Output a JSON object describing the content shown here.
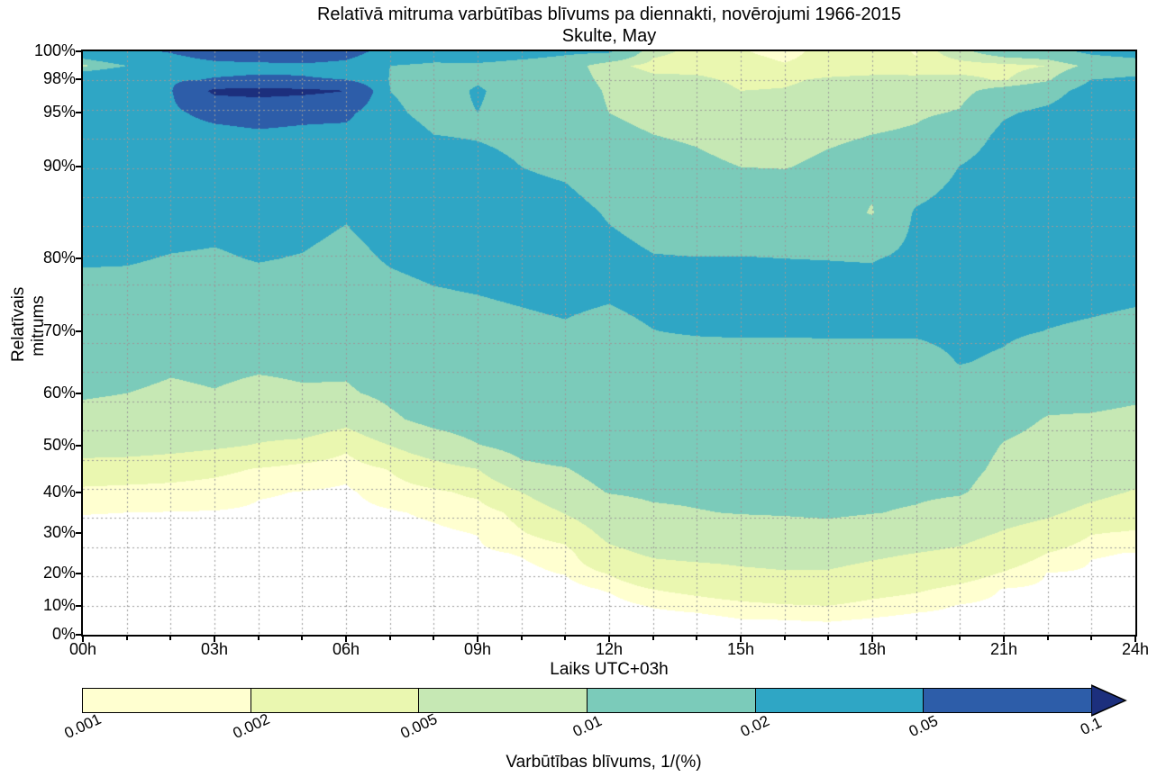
{
  "chart_data": {
    "type": "heatmap",
    "subtype": "filled-contour",
    "title": "Relatīvā mitruma varbūtības blīvums pa diennakti, novērojumi 1966-2015",
    "subtitle": "Skulte, May",
    "xlabel": "Laiks UTC+03h",
    "ylabel": "Relatīvais mitrums",
    "colorbar_label": "Varbūtības blīvums, 1/(%)",
    "xlim": [
      0,
      24
    ],
    "ylim": [
      0,
      100
    ],
    "levels": [
      0.001,
      0.002,
      0.005,
      0.01,
      0.02,
      0.05,
      0.1
    ],
    "level_labels": [
      "0.001",
      "0.002",
      "0.005",
      "0.01",
      "0.02",
      "0.05",
      "0.1"
    ],
    "band_colors": [
      "#ffffd0",
      "#eaf7b0",
      "#c6e8b4",
      "#7bcbba",
      "#2fa6c5",
      "#2d5da9",
      "#1c2f7d"
    ],
    "below_color": "#ffffff",
    "grid": {
      "show": true,
      "color": "#9a9a9a",
      "dash": [
        2,
        3
      ],
      "horizontal_step_fraction": 0.05,
      "vertical_step_hours": 1
    },
    "xticks": {
      "values": [
        0,
        3,
        6,
        9,
        12,
        15,
        18,
        21,
        24
      ],
      "labels": [
        "00h",
        "03h",
        "06h",
        "09h",
        "12h",
        "15h",
        "18h",
        "21h",
        "24h"
      ]
    },
    "yticks": {
      "values": [
        0,
        10,
        20,
        30,
        40,
        50,
        60,
        70,
        80,
        90,
        95,
        98,
        100
      ],
      "labels": [
        "0%",
        "10%",
        "20%",
        "30%",
        "40%",
        "50%",
        "60%",
        "70%",
        "80%",
        "90%",
        "95%",
        "98%",
        "100%"
      ],
      "positions": [
        0,
        0.049,
        0.105,
        0.174,
        0.244,
        0.324,
        0.414,
        0.52,
        0.645,
        0.802,
        0.895,
        0.952,
        1
      ]
    },
    "y_scale": {
      "humidity": [
        0,
        10,
        20,
        30,
        40,
        50,
        60,
        70,
        80,
        90,
        95,
        98,
        100
      ],
      "position": [
        0,
        0.049,
        0.105,
        0.174,
        0.244,
        0.324,
        0.414,
        0.52,
        0.645,
        0.802,
        0.895,
        0.952,
        1
      ]
    },
    "x": [
      0,
      1,
      2,
      3,
      4,
      5,
      6,
      7,
      8,
      9,
      10,
      11,
      12,
      13,
      14,
      15,
      16,
      17,
      18,
      19,
      20,
      21,
      22,
      23,
      24
    ],
    "y": [
      0,
      5,
      10,
      15,
      20,
      25,
      30,
      35,
      40,
      45,
      50,
      55,
      60,
      65,
      70,
      75,
      80,
      85,
      90,
      93,
      95,
      97,
      98,
      99,
      100
    ],
    "density": [
      [
        0.0001,
        0.0002,
        0.0003,
        0.00045,
        0.0006,
        0.0007,
        0.00085,
        0.00102,
        0.0016,
        0.0033,
        0.007,
        0.0085,
        0.0105,
        0.012,
        0.014,
        0.017,
        0.021,
        0.025,
        0.03,
        0.032,
        0.035,
        0.037,
        0.037,
        0.008,
        0.032
      ],
      [
        0.0001,
        0.0002,
        0.0003,
        0.00045,
        0.0006,
        0.0007,
        0.00085,
        0.001,
        0.0015,
        0.0031,
        0.0068,
        0.0083,
        0.01,
        0.0118,
        0.0138,
        0.0168,
        0.0208,
        0.025,
        0.031,
        0.034,
        0.038,
        0.04,
        0.04,
        0.02,
        0.042
      ],
      [
        0.0001,
        0.0002,
        0.00032,
        0.00046,
        0.0006,
        0.00072,
        0.00088,
        0.00098,
        0.00145,
        0.0028,
        0.0062,
        0.0078,
        0.0092,
        0.0108,
        0.013,
        0.016,
        0.0195,
        0.024,
        0.031,
        0.036,
        0.044,
        0.048,
        0.046,
        0.03,
        0.052
      ],
      [
        0.0001,
        0.00019,
        0.0003,
        0.00044,
        0.00058,
        0.0007,
        0.00086,
        0.00096,
        0.00135,
        0.0024,
        0.0055,
        0.0075,
        0.0098,
        0.0112,
        0.0135,
        0.016,
        0.019,
        0.023,
        0.032,
        0.04,
        0.06,
        0.11,
        0.052,
        0.04,
        0.07
      ],
      [
        0.0001,
        0.00018,
        0.00028,
        0.0004,
        0.00055,
        0.00068,
        0.00082,
        0.00092,
        0.00105,
        0.0019,
        0.0048,
        0.0068,
        0.0088,
        0.0108,
        0.013,
        0.016,
        0.0205,
        0.024,
        0.033,
        0.045,
        0.065,
        0.115,
        0.055,
        0.042,
        0.075
      ],
      [
        0.0001,
        0.00017,
        0.00026,
        0.00038,
        0.0005,
        0.00063,
        0.00077,
        0.0009,
        0.00098,
        0.0014,
        0.004,
        0.0078,
        0.0095,
        0.011,
        0.013,
        0.0155,
        0.0195,
        0.0235,
        0.032,
        0.042,
        0.06,
        0.11,
        0.052,
        0.045,
        0.075
      ],
      [
        0.0001,
        0.00016,
        0.00024,
        0.00035,
        0.00046,
        0.0006,
        0.00072,
        0.00085,
        0.00092,
        0.00115,
        0.0024,
        0.0062,
        0.0095,
        0.0108,
        0.0125,
        0.0145,
        0.017,
        0.021,
        0.03,
        0.04,
        0.058,
        0.1,
        0.05,
        0.04,
        0.065
      ],
      [
        0.0001,
        0.00017,
        0.00027,
        0.0004,
        0.00055,
        0.0007,
        0.00085,
        0.00095,
        0.00125,
        0.0021,
        0.005,
        0.0092,
        0.011,
        0.0125,
        0.0145,
        0.017,
        0.021,
        0.025,
        0.028,
        0.025,
        0.022,
        0.02,
        0.019,
        0.02,
        0.035
      ],
      [
        0.0001,
        0.00018,
        0.00028,
        0.00042,
        0.0006,
        0.00078,
        0.00092,
        0.00108,
        0.0017,
        0.0037,
        0.0072,
        0.0115,
        0.013,
        0.014,
        0.016,
        0.019,
        0.023,
        0.026,
        0.026,
        0.02,
        0.017,
        0.016,
        0.016,
        0.017,
        0.03
      ],
      [
        0.0001,
        0.0002,
        0.0003,
        0.00048,
        0.00068,
        0.00088,
        0.00102,
        0.00125,
        0.0024,
        0.005,
        0.0098,
        0.0125,
        0.0135,
        0.0145,
        0.017,
        0.02,
        0.024,
        0.027,
        0.024,
        0.019,
        0.02,
        0.021,
        0.019,
        0.018,
        0.028
      ],
      [
        0.00012,
        0.00022,
        0.00035,
        0.00055,
        0.00082,
        0.00105,
        0.0019,
        0.0025,
        0.005,
        0.009,
        0.0115,
        0.013,
        0.014,
        0.015,
        0.018,
        0.021,
        0.024,
        0.025,
        0.02,
        0.017,
        0.016,
        0.016,
        0.015,
        0.016,
        0.025
      ],
      [
        0.00013,
        0.00025,
        0.0004,
        0.00065,
        0.00105,
        0.0014,
        0.0028,
        0.0052,
        0.008,
        0.0098,
        0.0128,
        0.0138,
        0.0148,
        0.016,
        0.019,
        0.022,
        0.025,
        0.024,
        0.018,
        0.016,
        0.015,
        0.015,
        0.014,
        0.014,
        0.022
      ],
      [
        0.00015,
        0.0003,
        0.0006,
        0.0011,
        0.0021,
        0.0042,
        0.006,
        0.0075,
        0.0102,
        0.0118,
        0.0128,
        0.0135,
        0.0142,
        0.015,
        0.017,
        0.021,
        0.023,
        0.019,
        0.013,
        0.011,
        0.01,
        0.009,
        0.008,
        0.006,
        0.021
      ],
      [
        0.0002,
        0.0005,
        0.0011,
        0.002,
        0.0036,
        0.0055,
        0.007,
        0.0092,
        0.0108,
        0.012,
        0.0128,
        0.0135,
        0.014,
        0.0148,
        0.0198,
        0.023,
        0.0205,
        0.016,
        0.0115,
        0.01,
        0.009,
        0.008,
        0.006,
        0.0038,
        0.006
      ],
      [
        0.00025,
        0.0006,
        0.0014,
        0.0024,
        0.0038,
        0.006,
        0.0075,
        0.0098,
        0.0108,
        0.0118,
        0.0128,
        0.0134,
        0.0139,
        0.0145,
        0.021,
        0.0235,
        0.0202,
        0.015,
        0.0108,
        0.0095,
        0.008,
        0.007,
        0.0058,
        0.0035,
        0.004
      ],
      [
        0.0003,
        0.00095,
        0.0017,
        0.0028,
        0.0045,
        0.006,
        0.0078,
        0.0102,
        0.0112,
        0.012,
        0.0127,
        0.0133,
        0.0138,
        0.0144,
        0.0215,
        0.024,
        0.0203,
        0.0145,
        0.01,
        0.0085,
        0.0062,
        0.005,
        0.0042,
        0.003,
        0.0022
      ],
      [
        0.00032,
        0.001,
        0.0019,
        0.003,
        0.0048,
        0.0062,
        0.008,
        0.0104,
        0.0113,
        0.012,
        0.0126,
        0.0132,
        0.0137,
        0.0143,
        0.0215,
        0.0235,
        0.02,
        0.0145,
        0.0098,
        0.008,
        0.0062,
        0.0052,
        0.0045,
        0.0022,
        0.0013
      ],
      [
        0.00035,
        0.0011,
        0.002,
        0.0032,
        0.0048,
        0.006,
        0.0082,
        0.0108,
        0.0115,
        0.0122,
        0.0128,
        0.0133,
        0.0138,
        0.0144,
        0.0216,
        0.0235,
        0.0198,
        0.0135,
        0.011,
        0.0092,
        0.0068,
        0.006,
        0.0055,
        0.0028,
        0.0028
      ],
      [
        0.0003,
        0.0009,
        0.0016,
        0.0026,
        0.0042,
        0.0055,
        0.0072,
        0.0102,
        0.011,
        0.012,
        0.0128,
        0.0133,
        0.0139,
        0.0146,
        0.0215,
        0.0235,
        0.0195,
        0.0095,
        0.012,
        0.01,
        0.0075,
        0.0062,
        0.006,
        0.003,
        0.0035
      ],
      [
        0.00028,
        0.0007,
        0.0013,
        0.0022,
        0.0035,
        0.005,
        0.0068,
        0.0095,
        0.0108,
        0.0118,
        0.0125,
        0.0132,
        0.0138,
        0.0148,
        0.0215,
        0.024,
        0.022,
        0.021,
        0.0135,
        0.011,
        0.009,
        0.0068,
        0.0062,
        0.0025,
        0.0018
      ],
      [
        0.0003,
        0.00075,
        0.00095,
        0.0016,
        0.0028,
        0.0045,
        0.006,
        0.0078,
        0.0105,
        0.0115,
        0.0122,
        0.013,
        0.0142,
        0.0205,
        0.023,
        0.0245,
        0.025,
        0.024,
        0.0202,
        0.015,
        0.0105,
        0.008,
        0.0062,
        0.003,
        0.008
      ],
      [
        0.00032,
        0.0006,
        0.0008,
        0.00095,
        0.0019,
        0.0032,
        0.0048,
        0.0062,
        0.0078,
        0.009,
        0.0098,
        0.0112,
        0.0125,
        0.0185,
        0.0215,
        0.0235,
        0.0255,
        0.026,
        0.024,
        0.022,
        0.019,
        0.013,
        0.0045,
        0.0035,
        0.014
      ],
      [
        0.0003,
        0.0005,
        0.0007,
        0.00085,
        0.00098,
        0.002,
        0.0038,
        0.0055,
        0.0068,
        0.0078,
        0.0088,
        0.0098,
        0.0112,
        0.0135,
        0.0198,
        0.023,
        0.0265,
        0.027,
        0.026,
        0.024,
        0.022,
        0.016,
        0.009,
        0.005,
        0.016
      ],
      [
        0.00028,
        0.00045,
        0.0006,
        0.00075,
        0.0009,
        0.00105,
        0.0021,
        0.0042,
        0.0058,
        0.007,
        0.008,
        0.0095,
        0.0115,
        0.0135,
        0.0185,
        0.0225,
        0.027,
        0.028,
        0.028,
        0.027,
        0.026,
        0.024,
        0.02,
        0.012,
        0.022
      ],
      [
        0.00025,
        0.0004,
        0.00055,
        0.0007,
        0.00085,
        0.00098,
        0.0018,
        0.0032,
        0.0048,
        0.0062,
        0.0075,
        0.009,
        0.0108,
        0.013,
        0.017,
        0.0215,
        0.026,
        0.028,
        0.029,
        0.028,
        0.027,
        0.025,
        0.022,
        0.014,
        0.025
      ]
    ]
  }
}
